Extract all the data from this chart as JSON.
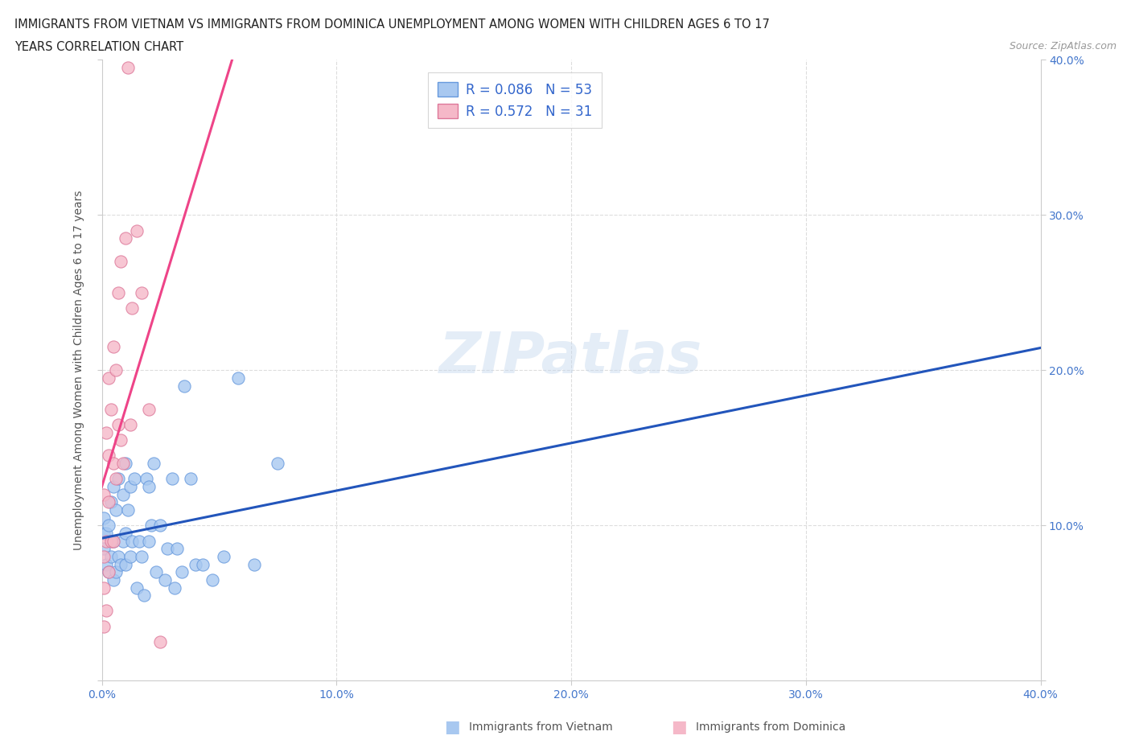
{
  "title_line1": "IMMIGRANTS FROM VIETNAM VS IMMIGRANTS FROM DOMINICA UNEMPLOYMENT AMONG WOMEN WITH CHILDREN AGES 6 TO 17",
  "title_line2": "YEARS CORRELATION CHART",
  "source": "Source: ZipAtlas.com",
  "ylabel": "Unemployment Among Women with Children Ages 6 to 17 years",
  "xlim": [
    0.0,
    0.4
  ],
  "ylim": [
    0.0,
    0.4
  ],
  "xticks": [
    0.0,
    0.1,
    0.2,
    0.3,
    0.4
  ],
  "yticks": [
    0.0,
    0.1,
    0.2,
    0.3,
    0.4
  ],
  "xticklabels": [
    "0.0%",
    "10.0%",
    "20.0%",
    "30.0%",
    "40.0%"
  ],
  "right_yticklabels": [
    "",
    "10.0%",
    "20.0%",
    "30.0%",
    "40.0%"
  ],
  "grid_color": "#cccccc",
  "background_color": "#ffffff",
  "watermark": "ZIPatlas",
  "legend_R1": "0.086",
  "legend_N1": "53",
  "legend_R2": "0.572",
  "legend_N2": "31",
  "color_vietnam": "#a8c8f0",
  "color_dominica": "#f5b8c8",
  "trendline_color_vietnam": "#2255bb",
  "trendline_color_dominica": "#ee4488",
  "vietnam_x": [
    0.001,
    0.001,
    0.001,
    0.002,
    0.002,
    0.003,
    0.003,
    0.004,
    0.004,
    0.005,
    0.005,
    0.005,
    0.006,
    0.006,
    0.007,
    0.007,
    0.008,
    0.009,
    0.009,
    0.01,
    0.01,
    0.01,
    0.011,
    0.012,
    0.012,
    0.013,
    0.014,
    0.015,
    0.016,
    0.017,
    0.018,
    0.019,
    0.02,
    0.02,
    0.021,
    0.022,
    0.023,
    0.025,
    0.027,
    0.028,
    0.03,
    0.031,
    0.032,
    0.034,
    0.035,
    0.038,
    0.04,
    0.043,
    0.047,
    0.052,
    0.058,
    0.065,
    0.075
  ],
  "vietnam_y": [
    0.085,
    0.095,
    0.105,
    0.075,
    0.095,
    0.07,
    0.1,
    0.08,
    0.115,
    0.065,
    0.09,
    0.125,
    0.07,
    0.11,
    0.08,
    0.13,
    0.075,
    0.09,
    0.12,
    0.075,
    0.095,
    0.14,
    0.11,
    0.08,
    0.125,
    0.09,
    0.13,
    0.06,
    0.09,
    0.08,
    0.055,
    0.13,
    0.09,
    0.125,
    0.1,
    0.14,
    0.07,
    0.1,
    0.065,
    0.085,
    0.13,
    0.06,
    0.085,
    0.07,
    0.19,
    0.13,
    0.075,
    0.075,
    0.065,
    0.08,
    0.195,
    0.075,
    0.14
  ],
  "dominica_x": [
    0.001,
    0.001,
    0.001,
    0.001,
    0.002,
    0.002,
    0.002,
    0.003,
    0.003,
    0.003,
    0.003,
    0.004,
    0.004,
    0.005,
    0.005,
    0.005,
    0.006,
    0.006,
    0.007,
    0.007,
    0.008,
    0.008,
    0.009,
    0.01,
    0.011,
    0.012,
    0.013,
    0.015,
    0.017,
    0.02,
    0.025
  ],
  "dominica_y": [
    0.035,
    0.06,
    0.08,
    0.12,
    0.045,
    0.09,
    0.16,
    0.07,
    0.115,
    0.145,
    0.195,
    0.09,
    0.175,
    0.09,
    0.14,
    0.215,
    0.13,
    0.2,
    0.165,
    0.25,
    0.155,
    0.27,
    0.14,
    0.285,
    0.395,
    0.165,
    0.24,
    0.29,
    0.25,
    0.175,
    0.025
  ]
}
